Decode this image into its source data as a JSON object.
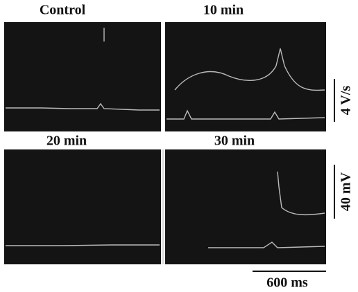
{
  "panels": [
    {
      "label": "Control"
    },
    {
      "label": "10 min"
    },
    {
      "label": "20 min"
    },
    {
      "label": "30 min"
    }
  ],
  "scale_bars": {
    "rate": "4 V/s",
    "voltage": "40 mV",
    "time": "600 ms"
  }
}
